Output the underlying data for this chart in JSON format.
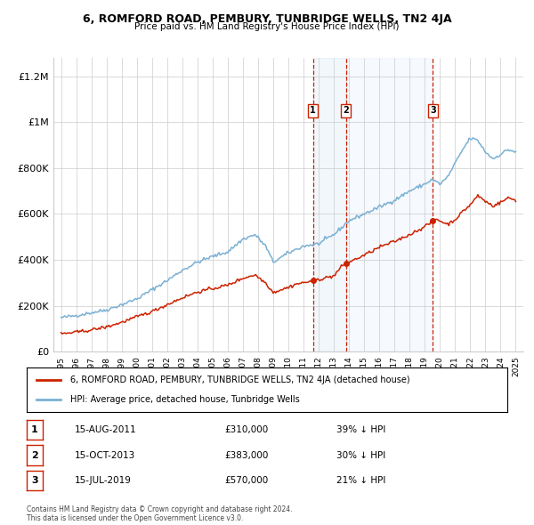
{
  "title1": "6, ROMFORD ROAD, PEMBURY, TUNBRIDGE WELLS, TN2 4JA",
  "title2": "Price paid vs. HM Land Registry's House Price Index (HPI)",
  "background_color": "#ffffff",
  "grid_color": "#cccccc",
  "hpi_color": "#7ab0d4",
  "hpi_fill_color": "#ddeeff",
  "price_color": "#cc2200",
  "dashed_line_color": "#cc2200",
  "shade_color": "#e8f0f8",
  "transactions": [
    {
      "num": 1,
      "date_str": "15-AUG-2011",
      "date_x": 2011.62,
      "price": 310000,
      "pct": "39% ↓ HPI"
    },
    {
      "num": 2,
      "date_str": "15-OCT-2013",
      "date_x": 2013.79,
      "price": 383000,
      "pct": "30% ↓ HPI"
    },
    {
      "num": 3,
      "date_str": "15-JUL-2019",
      "date_x": 2019.54,
      "price": 570000,
      "pct": "21% ↓ HPI"
    }
  ],
  "xlim": [
    1994.5,
    2025.5
  ],
  "ylim": [
    0,
    1280000
  ],
  "yticks": [
    0,
    200000,
    400000,
    600000,
    800000,
    1000000,
    1200000
  ],
  "xticks": [
    1995,
    1996,
    1997,
    1998,
    1999,
    2000,
    2001,
    2002,
    2003,
    2004,
    2005,
    2006,
    2007,
    2008,
    2009,
    2010,
    2011,
    2012,
    2013,
    2014,
    2015,
    2016,
    2017,
    2018,
    2019,
    2020,
    2021,
    2022,
    2023,
    2024,
    2025
  ],
  "legend_label_price": "6, ROMFORD ROAD, PEMBURY, TUNBRIDGE WELLS, TN2 4JA (detached house)",
  "legend_label_hpi": "HPI: Average price, detached house, Tunbridge Wells",
  "footnote": "Contains HM Land Registry data © Crown copyright and database right 2024.\nThis data is licensed under the Open Government Licence v3.0.",
  "hpi_anchors_x": [
    1995.0,
    1996.0,
    1997.0,
    1998.0,
    1999.0,
    2000.0,
    2001.0,
    2002.0,
    2003.0,
    2004.0,
    2005.0,
    2006.0,
    2007.0,
    2007.8,
    2008.5,
    2009.0,
    2009.5,
    2010.0,
    2011.0,
    2012.0,
    2013.0,
    2014.0,
    2015.0,
    2016.0,
    2017.0,
    2018.0,
    2019.0,
    2019.5,
    2020.0,
    2020.5,
    2021.0,
    2021.5,
    2022.0,
    2022.5,
    2023.0,
    2023.5,
    2024.0,
    2024.5,
    2025.0
  ],
  "hpi_anchors_y": [
    148000,
    158000,
    170000,
    182000,
    205000,
    230000,
    270000,
    310000,
    355000,
    390000,
    415000,
    435000,
    490000,
    510000,
    460000,
    390000,
    410000,
    430000,
    460000,
    470000,
    510000,
    570000,
    600000,
    630000,
    660000,
    700000,
    730000,
    750000,
    730000,
    760000,
    820000,
    880000,
    930000,
    920000,
    870000,
    840000,
    860000,
    880000,
    870000
  ],
  "price_anchors_x": [
    1995.0,
    1996.0,
    1997.0,
    1998.0,
    1999.0,
    2000.0,
    2001.0,
    2002.0,
    2003.0,
    2004.0,
    2005.0,
    2006.0,
    2007.0,
    2007.8,
    2008.5,
    2009.0,
    2009.5,
    2010.0,
    2010.5,
    2011.0,
    2011.5,
    2011.62,
    2012.0,
    2013.0,
    2013.5,
    2013.79,
    2014.0,
    2015.0,
    2016.0,
    2017.0,
    2018.0,
    2019.0,
    2019.4,
    2019.54,
    2019.8,
    2020.0,
    2020.5,
    2021.0,
    2021.5,
    2022.0,
    2022.5,
    2023.0,
    2023.5,
    2024.0,
    2024.5,
    2025.0
  ],
  "price_anchors_y": [
    78000,
    85000,
    95000,
    108000,
    128000,
    152000,
    175000,
    205000,
    235000,
    260000,
    275000,
    290000,
    320000,
    335000,
    300000,
    258000,
    270000,
    280000,
    295000,
    300000,
    308000,
    310000,
    315000,
    330000,
    370000,
    383000,
    390000,
    420000,
    455000,
    480000,
    510000,
    545000,
    562000,
    570000,
    578000,
    570000,
    555000,
    575000,
    610000,
    640000,
    680000,
    655000,
    635000,
    650000,
    670000,
    660000
  ]
}
